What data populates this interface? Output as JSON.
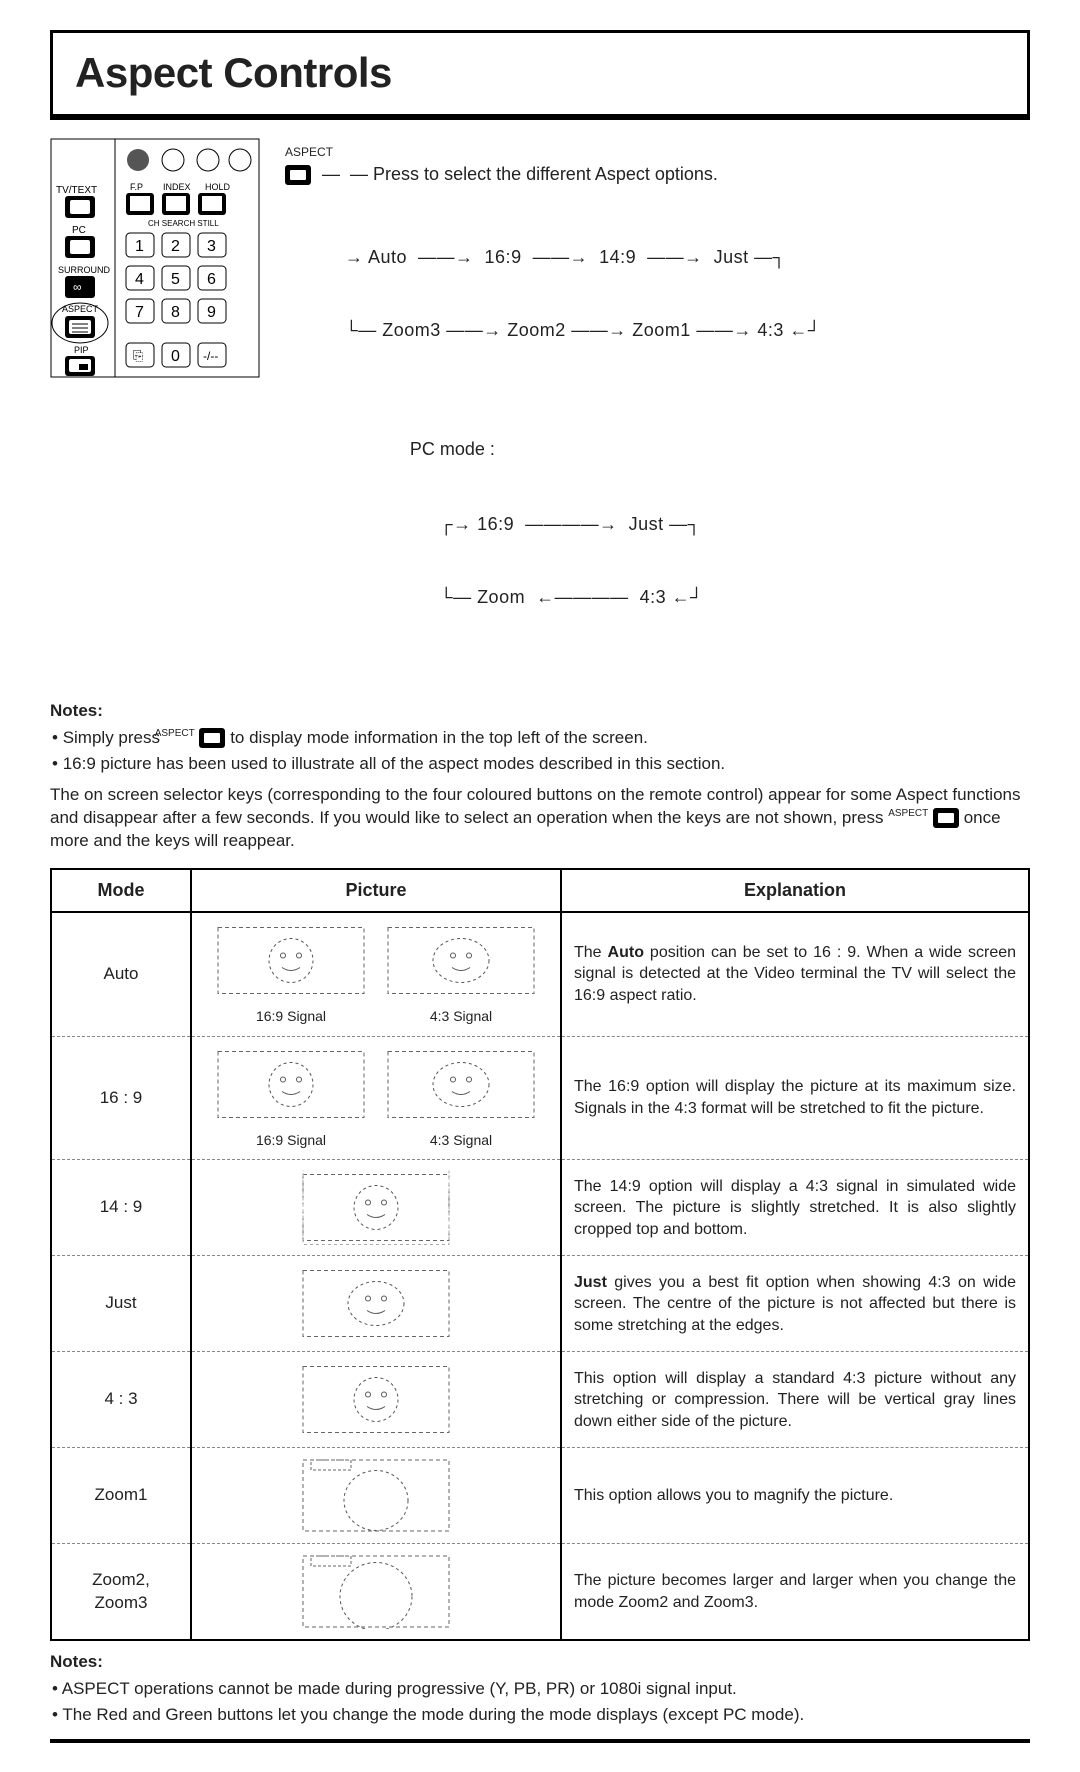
{
  "title": "Aspect Controls",
  "aspect_label_small": "ASPECT",
  "press_line": "Press to select the different Aspect options.",
  "cycle_main_row1": "→ Auto  ——→  16:9  ——→  14:9  ——→  Just —┐",
  "cycle_main_row2": "└— Zoom3 ——→ Zoom2 ——→ Zoom1 ——→ 4:3 ←┘",
  "pc_mode_label": "PC mode :",
  "cycle_pc_row1": "┌→ 16:9  ————→  Just —┐",
  "cycle_pc_row2": "└— Zoom  ←————  4:3 ←┘",
  "notes_heading": "Notes:",
  "note1_a": "Simply press ",
  "note1_b": " to display mode information in the top left of the screen.",
  "note2": "16:9 picture has been used to illustrate all of the aspect modes described in this section.",
  "para_a": "The on screen selector keys (corresponding to the four coloured buttons on the remote control) appear for some Aspect functions and disappear after a few seconds. If you would like to select an operation when the keys are not shown, press ",
  "para_b": " once more and the keys will reappear.",
  "table": {
    "headers": {
      "mode": "Mode",
      "picture": "Picture",
      "explanation": "Explanation"
    },
    "rows": [
      {
        "mode": "Auto",
        "pic_labels": [
          "16:9 Signal",
          "4:3 Signal"
        ],
        "dual": true,
        "explanation": "The Auto position can be set to 16 : 9. When a wide screen signal is detected at the Video terminal the TV will select the 16:9 aspect ratio.",
        "bold_lead": "Auto"
      },
      {
        "mode": "16 : 9",
        "pic_labels": [
          "16:9 Signal",
          "4:3 Signal"
        ],
        "dual": true,
        "explanation": "The 16:9 option will display the picture at its maximum size. Signals in the 4:3 format will be stretched to fit the picture."
      },
      {
        "mode": "14 : 9",
        "dual": false,
        "explanation": "The 14:9 option will display a 4:3 signal in simulated wide screen. The picture is slightly stretched. It is also slightly cropped top and bottom."
      },
      {
        "mode": "Just",
        "dual": false,
        "explanation": "Just gives you a best fit option when showing 4:3 on wide screen. The centre of the picture is not affected but there is some stretching at the edges.",
        "bold_lead": "Just"
      },
      {
        "mode": "4 : 3",
        "dual": false,
        "explanation": "This option will display a standard 4:3 picture without any stretching or compression. There will be vertical gray lines down either side of the picture."
      },
      {
        "mode": "Zoom1",
        "dual": false,
        "explanation": "This option allows you to magnify the picture."
      },
      {
        "mode": "Zoom2, Zoom3",
        "dual": false,
        "explanation": "The picture becomes larger and larger when you change the mode Zoom2 and Zoom3."
      }
    ]
  },
  "bottom_notes_heading": "Notes:",
  "bottom_note1": "ASPECT operations cannot be made during progressive (Y, PB, PR) or 1080i signal input.",
  "bottom_note2": "The Red and Green buttons let you change the mode during the mode displays (except PC mode).",
  "colors": {
    "text": "#222222",
    "border": "#000000",
    "dash": "#888888",
    "bg": "#ffffff"
  }
}
